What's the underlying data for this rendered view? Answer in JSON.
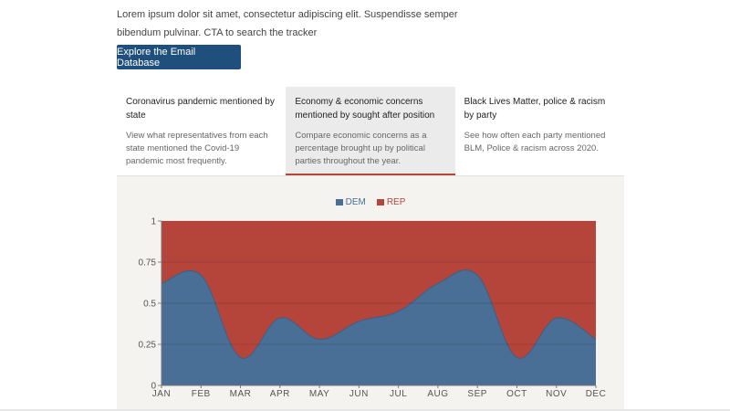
{
  "intro": {
    "text": "Lorem ipsum dolor sit amet, consectetur adipiscing elit. Suspendisse semper bibendum pulvinar. CTA to search the tracker"
  },
  "cta": {
    "label": "Explore the Email Database"
  },
  "tabs": [
    {
      "title": "Coronavirus pandemic mentioned by state",
      "desc": "View what representatives from each state mentioned the Covid-19 pandemic most frequently.",
      "active": false
    },
    {
      "title": "Economy & economic concerns mentioned by sought after position",
      "desc": "Compare economic concerns as a percentage brought up by political parties throughout the year.",
      "active": true
    },
    {
      "title": "Black Lives Matter, police & racism by party",
      "desc": "See how often each party mentioned BLM, Police & racism across 2020.",
      "active": false
    }
  ],
  "colors": {
    "dem": "#4a6f96",
    "rep": "#b5443b",
    "accent": "#1f4f7d"
  },
  "chart_data": {
    "type": "area",
    "stacked": true,
    "normalized": true,
    "categories": [
      "JAN",
      "FEB",
      "MAR",
      "APR",
      "MAY",
      "JUN",
      "JUL",
      "AUG",
      "SEP",
      "OCT",
      "NOV",
      "DEC"
    ],
    "series": [
      {
        "name": "DEM",
        "color": "#4a6f96",
        "values": [
          0.62,
          0.67,
          0.17,
          0.41,
          0.28,
          0.39,
          0.45,
          0.62,
          0.67,
          0.17,
          0.41,
          0.28
        ]
      },
      {
        "name": "REP",
        "color": "#b5443b",
        "values": [
          0.38,
          0.33,
          0.83,
          0.59,
          0.72,
          0.61,
          0.55,
          0.38,
          0.33,
          0.83,
          0.59,
          0.72
        ]
      }
    ],
    "ylim": [
      0,
      1
    ],
    "yticks": [
      "0",
      "0.25",
      "0.5",
      "0.75",
      "1"
    ],
    "legend": "top-center",
    "grid": true
  }
}
